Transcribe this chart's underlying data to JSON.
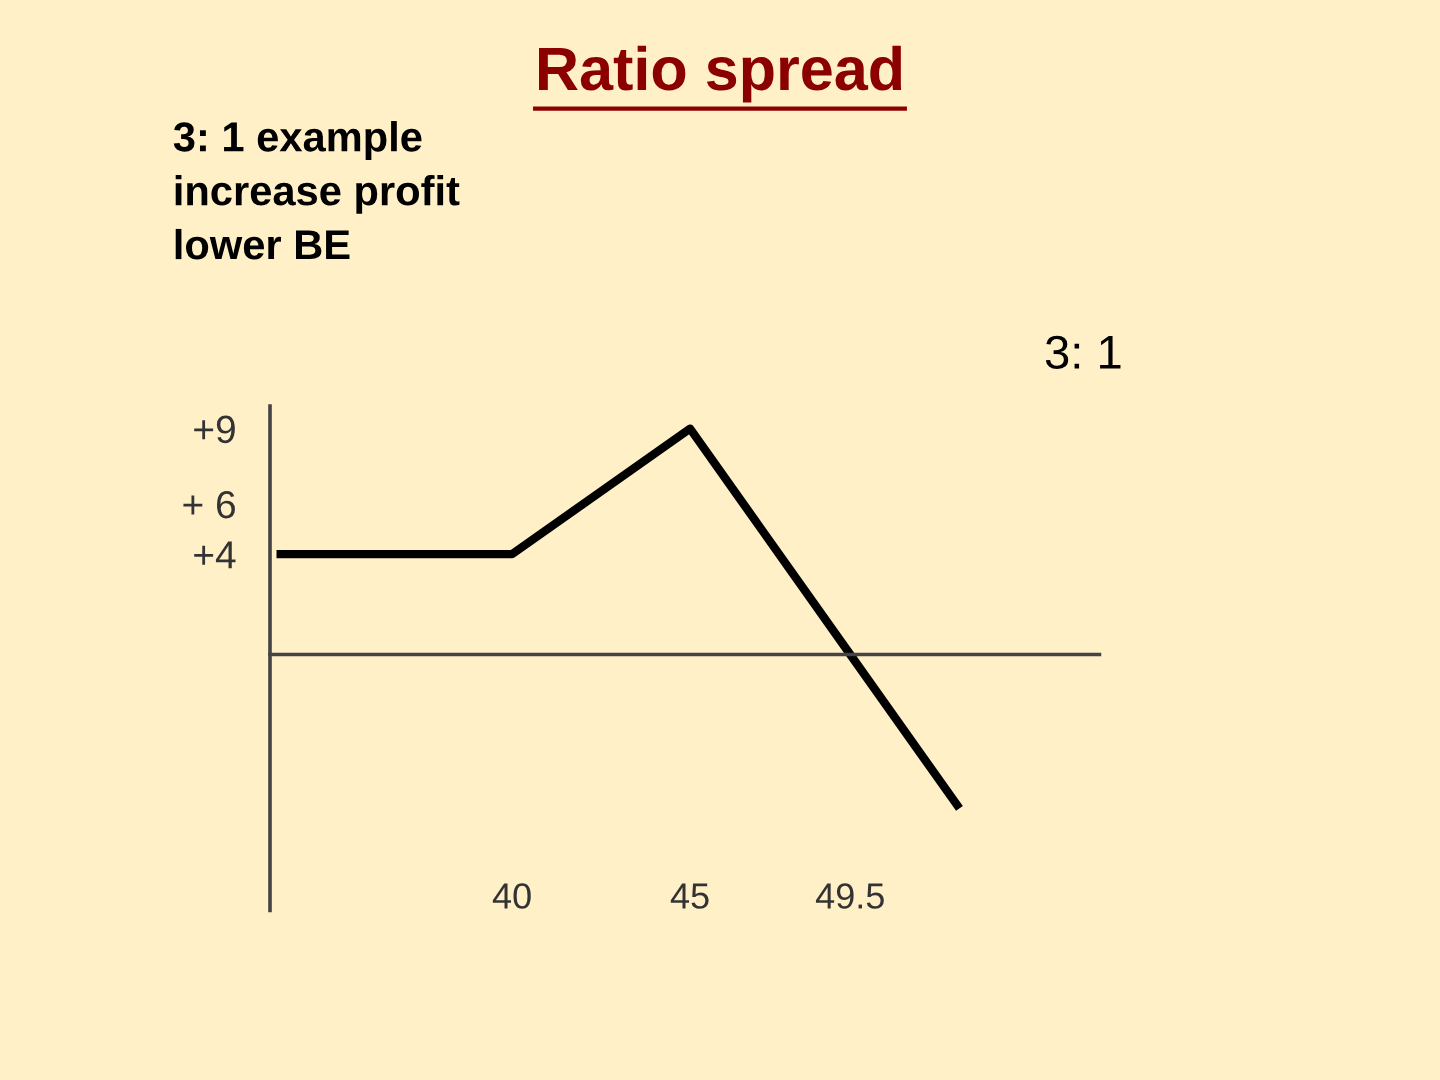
{
  "chart_data": {
    "type": "line",
    "title": "Ratio spread",
    "annotations": [
      "3: 1 example\nincrease profit\nlower BE",
      "3: 1"
    ],
    "x": [
      33.5,
      40,
      45,
      49.5,
      52.5
    ],
    "series": [
      {
        "color": "#000000",
        "values": [
          4,
          4,
          9,
          0,
          -6
        ]
      }
    ],
    "xlim": [
      33.2,
      56.5
    ],
    "ylim": [
      -10.2,
      9.9
    ],
    "xticks": [
      40,
      45,
      49.5
    ],
    "yticks": [
      {
        "value": 9,
        "label": "+9"
      },
      {
        "value": 6,
        "label": "+ 6"
      },
      {
        "value": 4,
        "label": "+4"
      }
    ],
    "grid": false,
    "legend": false,
    "marker": "none",
    "line_style": "solid"
  }
}
